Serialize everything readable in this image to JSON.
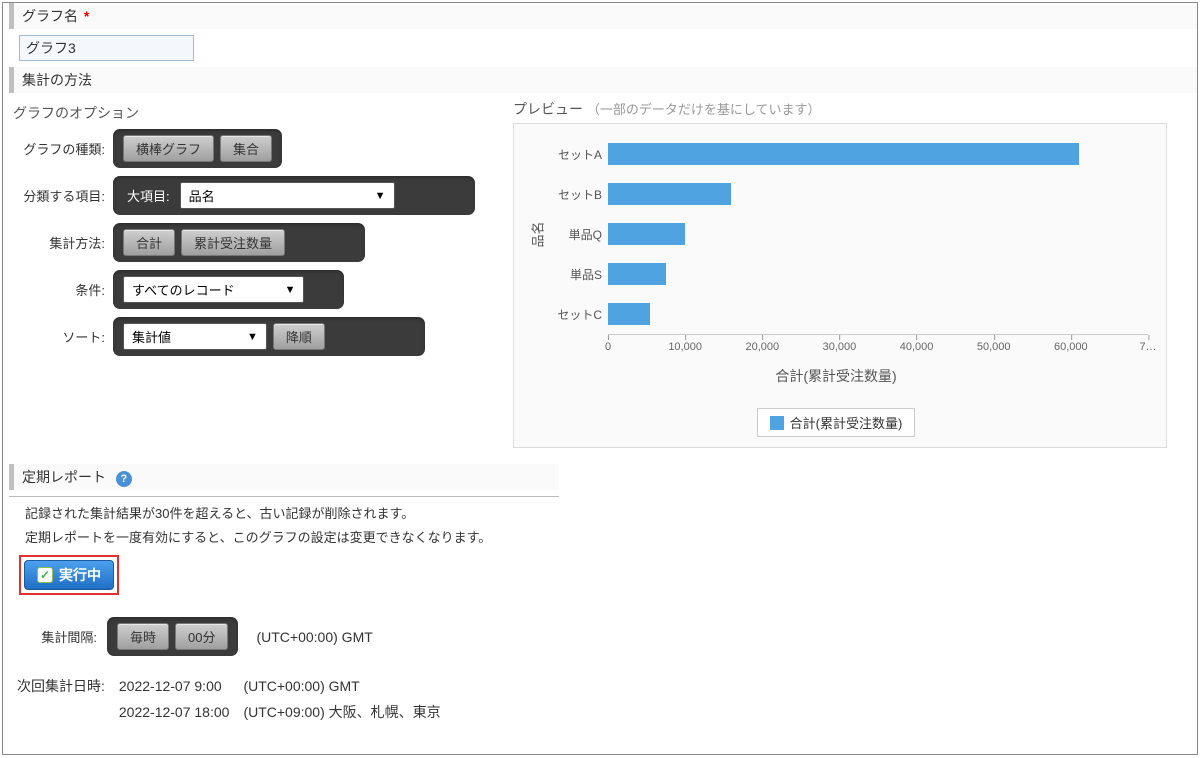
{
  "graph_name_section": {
    "title": "グラフ名",
    "required": "*",
    "value": "グラフ3"
  },
  "aggregation_section": {
    "title": "集計の方法"
  },
  "options_header": "グラフのオプション",
  "options": {
    "chart_type": {
      "label": "グラフの種類:",
      "btn1": "横棒グラフ",
      "btn2": "集合"
    },
    "group_by": {
      "label": "分類する項目:",
      "inner_label": "大項目:",
      "select_value": "品名"
    },
    "agg_method": {
      "label": "集計方法:",
      "btn1": "合計",
      "btn2": "累計受注数量"
    },
    "condition": {
      "label": "条件:",
      "select_value": "すべてのレコード"
    },
    "sort": {
      "label": "ソート:",
      "select_value": "集計値",
      "order_btn": "降順"
    }
  },
  "preview": {
    "title": "プレビュー",
    "subtitle": "（一部のデータだけを基にしています）",
    "chart": {
      "type": "bar-horizontal",
      "ylabel": "品名",
      "xlabel": "合計(累計受注数量)",
      "categories": [
        "セットA",
        "セットB",
        "単品Q",
        "単品S",
        "セットC"
      ],
      "values": [
        61000,
        16000,
        10000,
        7500,
        5500
      ],
      "xmax": 70000,
      "xtick_step": 10000,
      "xtick_labels": [
        "0",
        "10,000",
        "20,000",
        "30,000",
        "40,000",
        "50,000",
        "60,000",
        "7…"
      ],
      "bar_color": "#4fa3e0",
      "background_color": "#fafafa"
    },
    "legend_label": "合計(累計受注数量)"
  },
  "report": {
    "title": "定期レポート",
    "note1": "記録された集計結果が30件を超えると、古い記録が削除されます。",
    "note2": "定期レポートを一度有効にすると、このグラフの設定は変更できなくなります。",
    "running_label": "実行中",
    "interval": {
      "label": "集計間隔:",
      "btn1": "毎時",
      "btn2": "00分",
      "tz": "(UTC+00:00) GMT"
    },
    "next": {
      "label": "次回集計日時:",
      "rows": [
        {
          "datetime": "2022-12-07 9:00",
          "tz": "(UTC+00:00) GMT"
        },
        {
          "datetime": "2022-12-07 18:00",
          "tz": "(UTC+09:00) 大阪、札幌、東京"
        }
      ]
    }
  }
}
